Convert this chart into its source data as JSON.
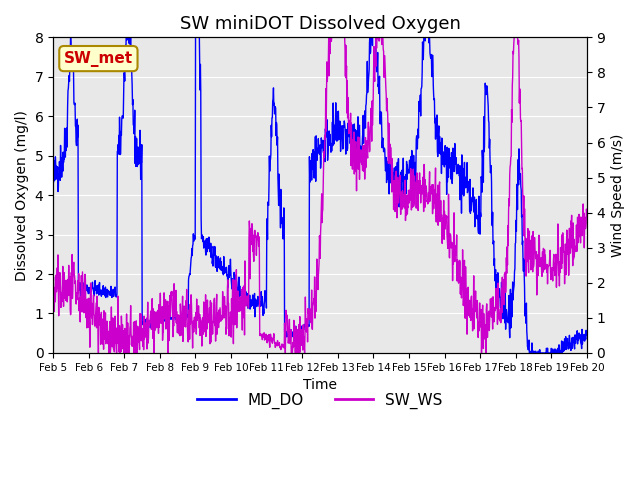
{
  "title": "SW miniDOT Dissolved Oxygen",
  "xlabel": "Time",
  "ylabel_left": "Dissolved Oxygen (mg/l)",
  "ylabel_right": "Wind Speed (m/s)",
  "ylim_left": [
    0.0,
    8.0
  ],
  "ylim_right": [
    0.0,
    9.0
  ],
  "yticks_left": [
    0.0,
    1.0,
    2.0,
    3.0,
    4.0,
    5.0,
    6.0,
    7.0,
    8.0
  ],
  "yticks_right": [
    0.0,
    1.0,
    2.0,
    3.0,
    4.0,
    5.0,
    6.0,
    7.0,
    8.0,
    9.0
  ],
  "xtick_labels": [
    "Feb 5",
    "Feb 6",
    "Feb 7",
    "Feb 8",
    "Feb 9",
    "Feb 10",
    "Feb 11",
    "Feb 12",
    "Feb 13",
    "Feb 14",
    "Feb 15",
    "Feb 16",
    "Feb 17",
    "Feb 18",
    "Feb 19",
    "Feb 20"
  ],
  "color_do": "#0000ff",
  "color_ws": "#cc00cc",
  "legend_label_do": "MD_DO",
  "legend_label_ws": "SW_WS",
  "annotation_text": "SW_met",
  "annotation_color": "#cc0000",
  "annotation_bg": "#ffffcc",
  "annotation_border": "#aa8800",
  "bg_color": "#e8e8e8",
  "line_width": 1.0,
  "seed": 42
}
